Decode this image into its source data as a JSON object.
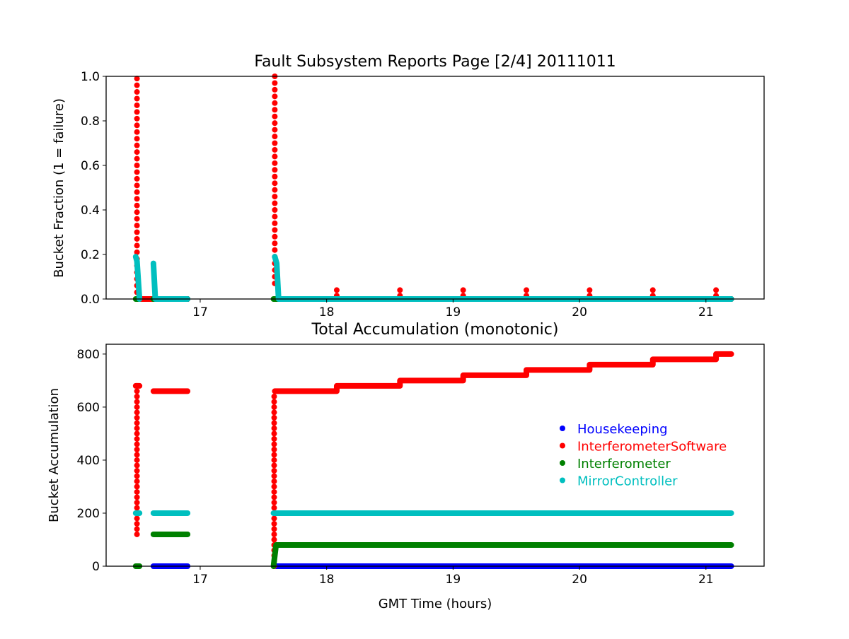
{
  "chart_data": [
    {
      "type": "scatter",
      "title": "Fault Subsystem Reports Page [2/4] 20111011",
      "xlabel": "",
      "ylabel": "Bucket Fraction (1 = failure)",
      "xlim": [
        16.256,
        21.46
      ],
      "ylim": [
        0,
        1.0
      ],
      "xticks": [
        17,
        18,
        19,
        20,
        21
      ],
      "xtick_labels": [
        "17",
        "18",
        "19",
        "20",
        "21"
      ],
      "yticks": [
        0,
        0.2,
        0.4,
        0.6,
        0.8,
        1.0
      ],
      "ytick_labels": [
        "0.0",
        "0.2",
        "0.4",
        "0.6",
        "0.8",
        "1.0"
      ],
      "series": [
        {
          "name": "Housekeeping",
          "color": "#0000ff",
          "lines": [
            [
              [
                16.63,
                0
              ],
              [
                16.9,
                0
              ]
            ],
            [
              [
                17.6,
                0
              ],
              [
                21.2,
                0
              ]
            ]
          ],
          "columns": [],
          "points": []
        },
        {
          "name": "InterferometerSoftware",
          "color": "#ff0000",
          "lines": [
            [
              [
                16.5,
                0
              ],
              [
                16.9,
                0
              ]
            ],
            [
              [
                17.6,
                0
              ],
              [
                21.2,
                0
              ]
            ]
          ],
          "columns": [
            [
              16.5,
              0.0,
              1.0,
              0.03
            ],
            [
              17.59,
              0.07,
              1.0,
              0.03
            ]
          ],
          "points": [
            [
              18.08,
              0.04
            ],
            [
              18.58,
              0.04
            ],
            [
              19.08,
              0.04
            ],
            [
              19.58,
              0.04
            ],
            [
              20.08,
              0.04
            ],
            [
              20.58,
              0.04
            ],
            [
              21.08,
              0.04
            ],
            [
              18.08,
              0.015
            ],
            [
              18.58,
              0.015
            ],
            [
              19.08,
              0.015
            ],
            [
              19.58,
              0.015
            ],
            [
              20.08,
              0.015
            ],
            [
              20.58,
              0.015
            ],
            [
              21.08,
              0.015
            ]
          ]
        },
        {
          "name": "Interferometer",
          "color": "#008000",
          "lines": [
            [
              [
                16.49,
                0
              ],
              [
                16.52,
                0
              ]
            ],
            [
              [
                16.63,
                0
              ],
              [
                16.9,
                0
              ]
            ],
            [
              [
                17.58,
                0
              ],
              [
                21.2,
                0
              ]
            ]
          ],
          "columns": [],
          "points": []
        },
        {
          "name": "MirrorController",
          "color": "#00bfbf",
          "lines": [
            [
              [
                16.49,
                0.19
              ],
              [
                16.5,
                0.17
              ],
              [
                16.52,
                0
              ]
            ],
            [
              [
                16.63,
                0.16
              ],
              [
                16.645,
                0
              ],
              [
                16.9,
                0
              ]
            ],
            [
              [
                17.59,
                0.19
              ],
              [
                17.605,
                0.16
              ],
              [
                17.62,
                0
              ],
              [
                21.2,
                0
              ]
            ]
          ],
          "columns": [],
          "points": []
        }
      ]
    },
    {
      "type": "scatter",
      "title": "Total Accumulation (monotonic)",
      "xlabel": "GMT Time (hours)",
      "ylabel": "Bucket Accumulation",
      "xlim": [
        16.256,
        21.46
      ],
      "ylim": [
        0,
        837
      ],
      "xticks": [
        17,
        18,
        19,
        20,
        21
      ],
      "xtick_labels": [
        "17",
        "18",
        "19",
        "20",
        "21"
      ],
      "yticks": [
        0,
        200,
        400,
        600,
        800
      ],
      "ytick_labels": [
        "0",
        "200",
        "400",
        "600",
        "800"
      ],
      "legend_position": "center-right",
      "series": [
        {
          "name": "Housekeeping",
          "color": "#0000ff",
          "lines": [
            [
              [
                16.63,
                0
              ],
              [
                16.9,
                0
              ]
            ],
            [
              [
                17.6,
                0
              ],
              [
                21.2,
                0
              ]
            ]
          ],
          "columns": [],
          "points": []
        },
        {
          "name": "InterferometerSoftware",
          "color": "#ff0000",
          "lines": [
            [
              [
                16.49,
                680
              ],
              [
                16.52,
                680
              ]
            ],
            [
              [
                16.63,
                660
              ],
              [
                16.9,
                660
              ]
            ],
            [
              [
                17.59,
                660
              ],
              [
                18.08,
                660
              ],
              [
                18.08,
                680
              ],
              [
                18.58,
                680
              ],
              [
                18.58,
                700
              ],
              [
                19.08,
                700
              ],
              [
                19.08,
                720
              ],
              [
                19.58,
                720
              ],
              [
                19.58,
                740
              ],
              [
                20.08,
                740
              ],
              [
                20.08,
                760
              ],
              [
                20.58,
                760
              ],
              [
                20.58,
                780
              ],
              [
                21.08,
                780
              ],
              [
                21.08,
                800
              ],
              [
                21.2,
                800
              ]
            ]
          ],
          "columns": [
            [
              16.5,
              120,
              680,
              20
            ],
            [
              17.585,
              0,
              640,
              20
            ]
          ],
          "points": []
        },
        {
          "name": "Interferometer",
          "color": "#008000",
          "lines": [
            [
              [
                16.49,
                0
              ],
              [
                16.52,
                0
              ]
            ],
            [
              [
                16.63,
                120
              ],
              [
                16.9,
                120
              ]
            ],
            [
              [
                17.58,
                0
              ],
              [
                17.6,
                80
              ],
              [
                21.2,
                80
              ]
            ]
          ],
          "columns": [],
          "points": []
        },
        {
          "name": "MirrorController",
          "color": "#00bfbf",
          "lines": [
            [
              [
                16.49,
                200
              ],
              [
                16.52,
                200
              ]
            ],
            [
              [
                16.63,
                200
              ],
              [
                16.9,
                200
              ]
            ],
            [
              [
                17.58,
                200
              ],
              [
                21.2,
                200
              ]
            ]
          ],
          "columns": [],
          "points": []
        }
      ]
    }
  ]
}
